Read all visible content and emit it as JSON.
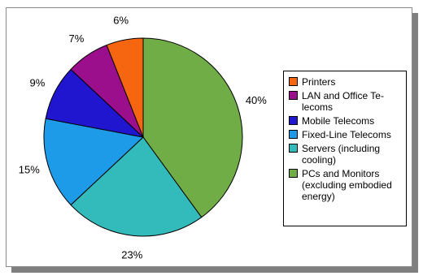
{
  "chart_data": {
    "type": "pie",
    "title": "",
    "start_angle_deg": 0,
    "direction": "clockwise",
    "slices": [
      {
        "label": "PCs and Monitors\n(excluding embodied\nenergy)",
        "value": 40,
        "display": "40%",
        "color": "#70AD47"
      },
      {
        "label": "Servers (including\ncooling)",
        "value": 23,
        "display": "23%",
        "color": "#33BBBB"
      },
      {
        "label": "Fixed-Line Telecoms",
        "value": 15,
        "display": "15%",
        "color": "#1E9BE8"
      },
      {
        "label": "Mobile Telecoms",
        "value": 9,
        "display": "9%",
        "color": "#2016D0"
      },
      {
        "label": "LAN and Office Te-\nlecoms",
        "value": 7,
        "display": "7%",
        "color": "#9B0E8C"
      },
      {
        "label": "Printers",
        "value": 6,
        "display": "6%",
        "color": "#F6650F"
      }
    ],
    "legend_order": [
      "Printers",
      "LAN and Office Te-\nlecoms",
      "Mobile Telecoms",
      "Fixed-Line Telecoms",
      "Servers (including\ncooling)",
      "PCs and Monitors\n(excluding embodied\nenergy)"
    ],
    "legend_placement": "right"
  }
}
